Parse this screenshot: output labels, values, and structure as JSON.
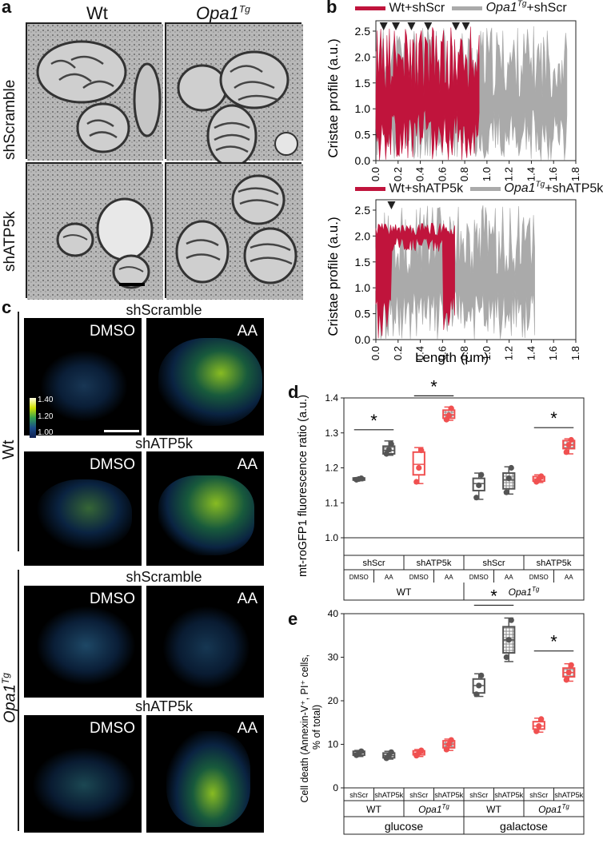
{
  "panel_a": {
    "letter": "a",
    "col_wt": "Wt",
    "col_opa_base": "Opa1",
    "col_opa_sup": "Tg",
    "row_shscramble": "shScramble",
    "row_shatp5k": "shATP5k"
  },
  "panel_b": {
    "letter": "b",
    "top": {
      "legend_wt": "Wt+shScr",
      "legend_opa_base": "Opa1",
      "legend_opa_sup": "Tg",
      "legend_opa_suffix": "+shScr"
    },
    "bottom": {
      "legend_wt": "Wt+shATP5k",
      "legend_opa_base": "Opa1",
      "legend_opa_sup": "Tg",
      "legend_opa_suffix": "+shATP5k"
    },
    "ylabel": "Cristae profile (a.u.)",
    "xlabel": "Length (μm)",
    "colors": {
      "wt": "#c0143c",
      "opa": "#aaaaaa"
    }
  },
  "panel_c": {
    "letter": "c",
    "group_wt": "Wt",
    "group_opa_base": "Opa1",
    "group_opa_sup": "Tg",
    "titles": [
      "shScramble",
      "shATP5k",
      "shScramble",
      "shATP5k"
    ],
    "dmso": "DMSO",
    "aa": "AA",
    "colorbar": [
      "1.40",
      "1.20",
      "1.00"
    ]
  },
  "panel_d": {
    "letter": "d",
    "star": "*",
    "ylabel": "mt-roGFP1 fluorescence ratio (a.u.)",
    "row1": [
      "shScr",
      "shATP5k",
      "shScr",
      "shATP5k"
    ],
    "row2": [
      "DMSO",
      "AA",
      "DMSO",
      "AA",
      "DMSO",
      "AA",
      "DMSO",
      "AA"
    ],
    "row3_wt": "WT",
    "row3_opa_base": "Opa1",
    "row3_opa_sup": "Tg"
  },
  "panel_e": {
    "letter": "e",
    "star": "*",
    "ylabel_line1": "Cell death (Annexin-V⁺, PI⁺ cells,",
    "ylabel_line2": "% of total)",
    "row1": [
      "shScr",
      "shATP5k",
      "shScr",
      "shATP5k",
      "shScr",
      "shATP5k",
      "shScr",
      "shATP5k"
    ],
    "row2": [
      "WT",
      "Opa1",
      "WT",
      "Opa1"
    ],
    "row2_sup": "Tg",
    "row3": [
      "glucose",
      "galactose"
    ]
  },
  "chart_data": [
    {
      "type": "area",
      "panel": "b-top",
      "xlabel": "",
      "ylabel": "Cristae profile (a.u.)",
      "xlim": [
        0,
        1.8
      ],
      "ylim": [
        0,
        2.7
      ],
      "xticks": [
        "0.0",
        "0.2",
        "0.4",
        "0.6",
        "0.8",
        "1.0",
        "1.2",
        "1.4",
        "1.6",
        "1.8"
      ],
      "yticks": [
        "0.0",
        "0.5",
        "1.0",
        "1.5",
        "2.0",
        "2.5"
      ],
      "series": [
        {
          "name": "Wt+shScr",
          "x_max": 0.93
        },
        {
          "name": "Opa1Tg+shScr",
          "x_max": 1.72
        }
      ],
      "arrowheads_x": [
        0.07,
        0.18,
        0.32,
        0.47,
        0.72,
        0.81
      ]
    },
    {
      "type": "area",
      "panel": "b-bottom",
      "xlabel": "Length (μm)",
      "ylabel": "Cristae profile (a.u.)",
      "xlim": [
        0,
        1.8
      ],
      "ylim": [
        0,
        2.7
      ],
      "xticks": [
        "0.0",
        "0.2",
        "0.4",
        "0.6",
        "0.8",
        "1.0",
        "1.2",
        "1.4",
        "1.6",
        "1.8"
      ],
      "yticks": [
        "0.0",
        "0.5",
        "1.0",
        "1.5",
        "2.0",
        "2.5"
      ],
      "series": [
        {
          "name": "Wt+shATP5k",
          "x_max": 0.71
        },
        {
          "name": "Opa1Tg+shATP5k",
          "x_max": 1.43
        }
      ],
      "arrowheads_x": [
        0.14
      ]
    },
    {
      "type": "box",
      "panel": "d",
      "ylabel": "mt-roGFP1 fluorescence ratio (a.u.)",
      "ylim": [
        1.0,
        1.4
      ],
      "yticks": [
        "1.0",
        "1.1",
        "1.2",
        "1.3",
        "1.4"
      ],
      "boxes": [
        {
          "group": "WT shScr DMSO",
          "color": "#555555",
          "pattern": false,
          "q1": 1.165,
          "median": 1.168,
          "q3": 1.171,
          "min": 1.163,
          "max": 1.172,
          "points": [
            1.166,
            1.168,
            1.17
          ]
        },
        {
          "group": "WT shScr AA",
          "color": "#555555",
          "pattern": true,
          "q1": 1.24,
          "median": 1.25,
          "q3": 1.262,
          "min": 1.236,
          "max": 1.277,
          "points": [
            1.24,
            1.252,
            1.268
          ]
        },
        {
          "group": "WT shATP5k DMSO",
          "color": "#f05050",
          "pattern": false,
          "q1": 1.18,
          "median": 1.21,
          "q3": 1.245,
          "min": 1.155,
          "max": 1.258,
          "points": [
            1.16,
            1.2,
            1.25
          ]
        },
        {
          "group": "WT shATP5k AA",
          "color": "#f05050",
          "pattern": true,
          "q1": 1.342,
          "median": 1.352,
          "q3": 1.365,
          "min": 1.336,
          "max": 1.374,
          "points": [
            1.338,
            1.35,
            1.37
          ]
        },
        {
          "group": "Opa1Tg shScr DMSO",
          "color": "#555555",
          "pattern": false,
          "q1": 1.135,
          "median": 1.155,
          "q3": 1.17,
          "min": 1.11,
          "max": 1.185,
          "points": [
            1.115,
            1.15,
            1.18
          ]
        },
        {
          "group": "Opa1Tg shScr AA",
          "color": "#555555",
          "pattern": true,
          "q1": 1.14,
          "median": 1.165,
          "q3": 1.185,
          "min": 1.125,
          "max": 1.203,
          "points": [
            1.13,
            1.17,
            1.2
          ]
        },
        {
          "group": "Opa1Tg shATP5k DMSO",
          "color": "#f05050",
          "pattern": false,
          "q1": 1.162,
          "median": 1.168,
          "q3": 1.175,
          "min": 1.158,
          "max": 1.18,
          "points": [
            1.16,
            1.168,
            1.176
          ]
        },
        {
          "group": "Opa1Tg shATP5k AA",
          "color": "#f05050",
          "pattern": true,
          "q1": 1.255,
          "median": 1.265,
          "q3": 1.278,
          "min": 1.24,
          "max": 1.283,
          "points": [
            1.245,
            1.266,
            1.28
          ]
        }
      ],
      "significance": [
        [
          0,
          1
        ],
        [
          2,
          3
        ],
        [
          6,
          7
        ]
      ]
    },
    {
      "type": "box",
      "panel": "e",
      "ylabel": "Cell death (Annexin-V⁺, PI⁺ cells, % of total)",
      "ylim": [
        0,
        40
      ],
      "yticks": [
        "0",
        "10",
        "20",
        "30",
        "40"
      ],
      "boxes": [
        {
          "group": "glucose WT shScr",
          "color": "#555555",
          "pattern": false,
          "q1": 7.5,
          "median": 8.0,
          "q3": 8.4,
          "min": 7.2,
          "max": 8.6,
          "points": [
            7.5,
            8.0,
            8.4
          ]
        },
        {
          "group": "glucose WT shATP5k",
          "color": "#555555",
          "pattern": true,
          "q1": 6.9,
          "median": 7.4,
          "q3": 8.0,
          "min": 6.6,
          "max": 8.4,
          "points": [
            6.8,
            7.4,
            8.2
          ]
        },
        {
          "group": "glucose Opa1Tg shScr",
          "color": "#f05050",
          "pattern": false,
          "q1": 7.6,
          "median": 8.0,
          "q3": 8.5,
          "min": 7.2,
          "max": 8.8,
          "points": [
            7.4,
            8.0,
            8.6
          ]
        },
        {
          "group": "glucose Opa1Tg shATP5k",
          "color": "#f05050",
          "pattern": true,
          "q1": 9.2,
          "median": 10.0,
          "q3": 10.8,
          "min": 8.6,
          "max": 11.2,
          "points": [
            8.8,
            10.0,
            11.0
          ]
        },
        {
          "group": "galactose WT shScr",
          "color": "#555555",
          "pattern": false,
          "q1": 21.8,
          "median": 23.5,
          "q3": 25.0,
          "min": 21.0,
          "max": 26.2,
          "points": [
            21.5,
            23.5,
            25.8
          ]
        },
        {
          "group": "galactose WT shATP5k",
          "color": "#555555",
          "pattern": true,
          "q1": 31.0,
          "median": 34.0,
          "q3": 37.0,
          "min": 29.0,
          "max": 39.0,
          "points": [
            30.0,
            34.0,
            38.5
          ]
        },
        {
          "group": "galactose Opa1Tg shScr",
          "color": "#f05050",
          "pattern": false,
          "q1": 13.5,
          "median": 14.2,
          "q3": 15.2,
          "min": 12.8,
          "max": 16.0,
          "points": [
            13.0,
            14.2,
            15.8
          ]
        },
        {
          "group": "galactose Opa1Tg shATP5k",
          "color": "#f05050",
          "pattern": true,
          "q1": 25.5,
          "median": 26.5,
          "q3": 27.5,
          "min": 24.5,
          "max": 28.5,
          "points": [
            24.8,
            26.5,
            28.2
          ]
        }
      ],
      "significance": [
        [
          4,
          5
        ],
        [
          6,
          7
        ]
      ]
    }
  ]
}
